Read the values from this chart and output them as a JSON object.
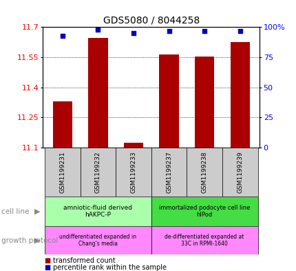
{
  "title": "GDS5080 / 8044258",
  "samples": [
    "GSM1199231",
    "GSM1199232",
    "GSM1199233",
    "GSM1199237",
    "GSM1199238",
    "GSM1199239"
  ],
  "transformed_counts": [
    11.33,
    11.645,
    11.125,
    11.563,
    11.555,
    11.625
  ],
  "percentile_ranks": [
    93,
    98,
    95,
    97,
    97,
    97
  ],
  "ylim_left": [
    11.1,
    11.7
  ],
  "ylim_right": [
    0,
    100
  ],
  "yticks_left": [
    11.1,
    11.25,
    11.4,
    11.55,
    11.7
  ],
  "yticks_right": [
    0,
    25,
    50,
    75,
    100
  ],
  "bar_color": "#aa0000",
  "dot_color": "#0000bb",
  "bar_width": 0.55,
  "cell_line_labels": [
    "amniotic-fluid derived\nhAKPC-P",
    "immortalized podocyte cell line\nhIPod"
  ],
  "cell_line_colors": [
    "#aaffaa",
    "#44dd44"
  ],
  "growth_protocol_labels": [
    "undifferentiated expanded in\nChang's media",
    "de-differentiated expanded at\n33C in RPMI-1640"
  ],
  "growth_protocol_color": "#ff88ff",
  "legend_bar_color": "#aa0000",
  "legend_dot_color": "#0000bb",
  "arrow_color": "#888888",
  "sample_box_color": "#cccccc",
  "left_label_color": "#888888"
}
